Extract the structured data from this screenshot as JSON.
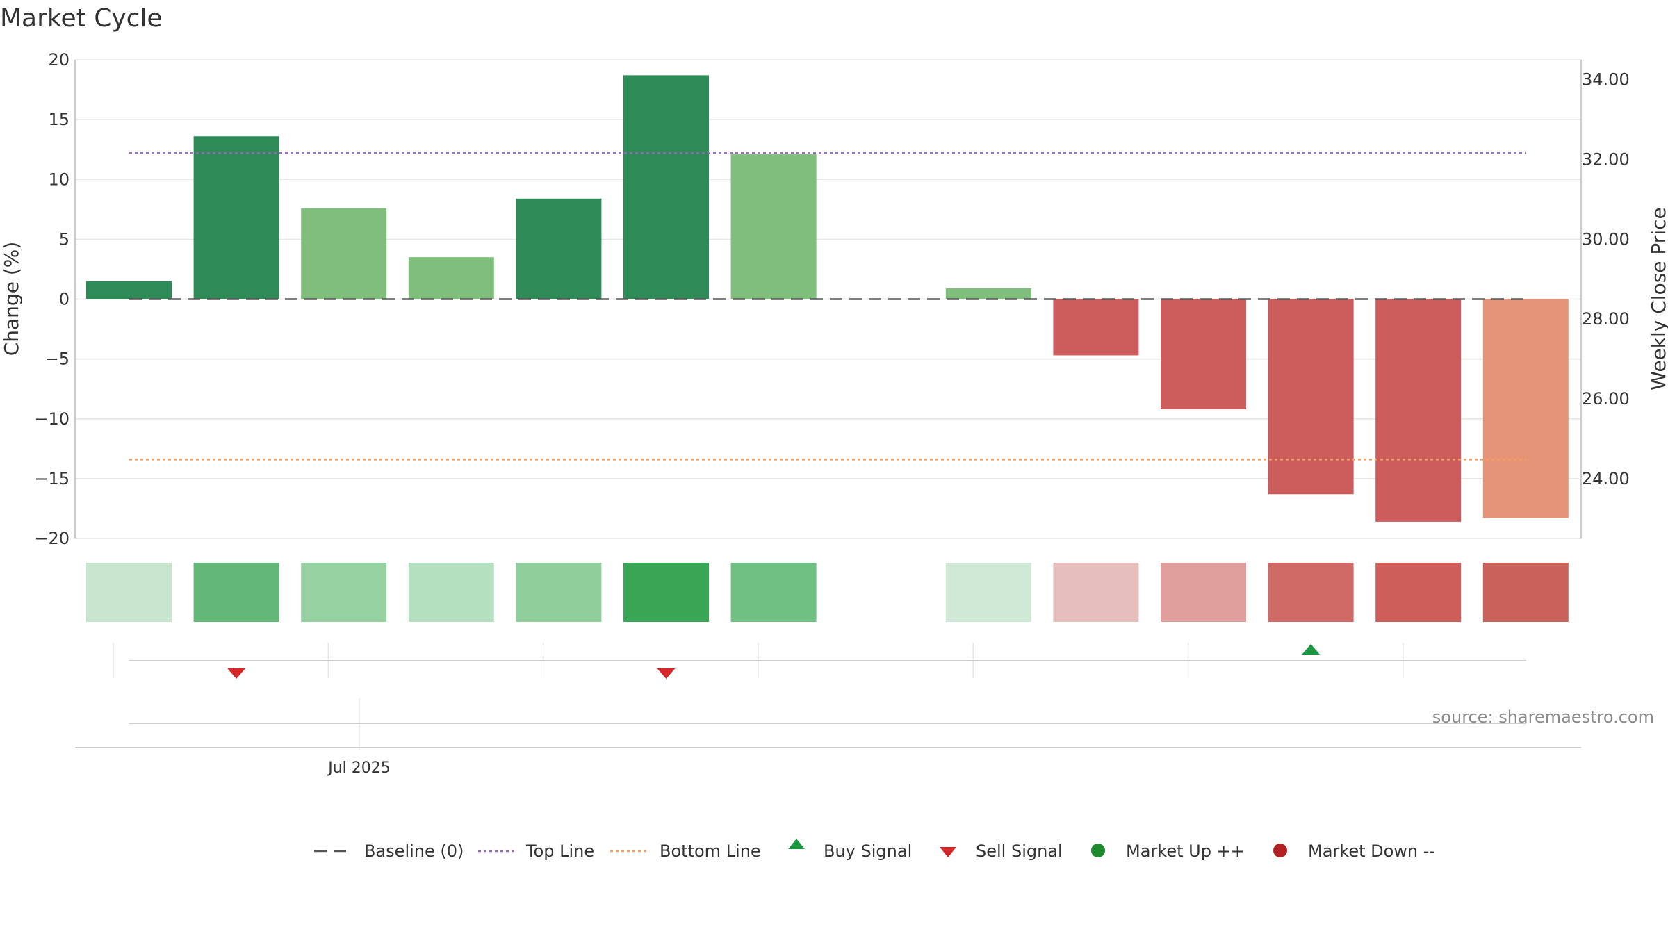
{
  "chart_data": {
    "type": "bar",
    "title": "Market Cycle",
    "ylabel": "Change (%)",
    "y2label": "Weekly Close Price",
    "ylim": [
      -20,
      20
    ],
    "yticks": [
      20,
      15,
      10,
      5,
      0,
      -5,
      -10,
      -15,
      -20
    ],
    "ytick_labels": [
      "20",
      "15",
      "10",
      "5",
      "0",
      "−5",
      "−10",
      "−15",
      "−20"
    ],
    "y2lim": [
      22.5,
      34.5
    ],
    "y2ticks": [
      34,
      32,
      30,
      28,
      26,
      24
    ],
    "y2tick_labels": [
      "34.00",
      "32.00",
      "30.00",
      "28.00",
      "26.00",
      "24.00"
    ],
    "baseline": 0,
    "top_line": 12.2,
    "bottom_line": -13.4,
    "bar_count": 14,
    "bars": [
      {
        "index": 0,
        "value": 1.5,
        "color": "#2e8b57",
        "heat": "#c8e6cf"
      },
      {
        "index": 1,
        "value": 13.6,
        "color": "#2e8b57",
        "heat": "#63b878"
      },
      {
        "index": 2,
        "value": 7.6,
        "color": "#7fbf7b",
        "heat": "#96d1a1"
      },
      {
        "index": 3,
        "value": 3.5,
        "color": "#7fbf7b",
        "heat": "#b5e0c0"
      },
      {
        "index": 4,
        "value": 8.4,
        "color": "#2e8b57",
        "heat": "#90cf9c"
      },
      {
        "index": 5,
        "value": 18.7,
        "color": "#2e8b57",
        "heat": "#38a655"
      },
      {
        "index": 6,
        "value": 12.1,
        "color": "#7fbf7b",
        "heat": "#70c083"
      },
      {
        "index": 8,
        "value": 0.9,
        "color": "#7fbf7b",
        "heat": "#cfe9d6"
      },
      {
        "index": 9,
        "value": -4.7,
        "color": "#cd5c5c",
        "heat": "#e6bfbc"
      },
      {
        "index": 10,
        "value": -9.2,
        "color": "#cd5c5c",
        "heat": "#df9e9b"
      },
      {
        "index": 11,
        "value": -16.3,
        "color": "#cd5c5c",
        "heat": "#d06a66"
      },
      {
        "index": 12,
        "value": -18.6,
        "color": "#cd5c5c",
        "heat": "#cd5e5a"
      },
      {
        "index": 13,
        "value": -18.3,
        "color": "#e69477",
        "heat": "#c9625a"
      }
    ],
    "signals": [
      {
        "index": 1,
        "type": "sell"
      },
      {
        "index": 5,
        "type": "sell"
      },
      {
        "index": 11,
        "type": "buy"
      }
    ],
    "xtick_label": "Jul 2025",
    "source": "source: sharemaestro.com",
    "legend": [
      {
        "key": "baseline",
        "label": "Baseline (0)"
      },
      {
        "key": "top",
        "label": "Top Line"
      },
      {
        "key": "bottom",
        "label": "Bottom Line"
      },
      {
        "key": "buy",
        "label": "Buy Signal"
      },
      {
        "key": "sell",
        "label": "Sell Signal"
      },
      {
        "key": "up",
        "label": "Market Up ++"
      },
      {
        "key": "down",
        "label": "Market Down --"
      }
    ],
    "colors": {
      "baseline": "#555555",
      "top_line": "#9467bd",
      "bottom_line": "#f0a060",
      "buy": "#1a9641",
      "sell": "#d62728",
      "up": "#1e8a2e",
      "down": "#b22222",
      "grid": "#e6e6e6",
      "axis": "#cccccc"
    }
  }
}
